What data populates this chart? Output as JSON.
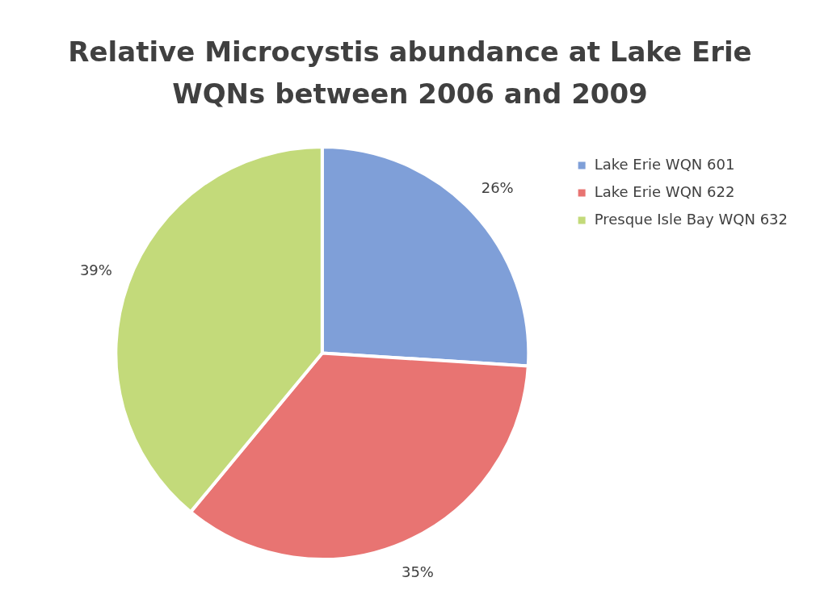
{
  "chart_data": {
    "type": "pie",
    "title": "Relative Microcystis abundance at Lake Erie WQNs between 2006 and 2009",
    "categories": [
      "Lake Erie WQN 601",
      "Lake Erie WQN 622",
      "Presque Isle Bay WQN 632"
    ],
    "values": [
      26,
      35,
      39
    ],
    "colors": [
      "#7f9fd8",
      "#e87472",
      "#c3da7a"
    ],
    "value_labels": [
      "26%",
      "35%",
      "39%"
    ],
    "legend": "right"
  }
}
